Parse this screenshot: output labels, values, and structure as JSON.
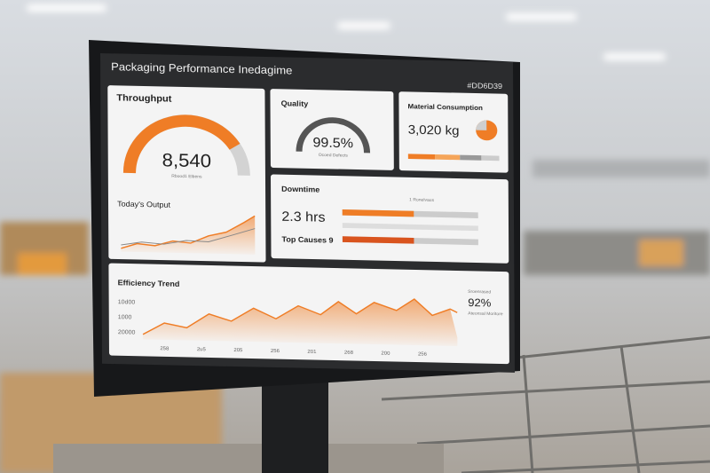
{
  "header": {
    "title": "Packaging Performance Inedagime",
    "tag": "#DD6D39"
  },
  "throughput": {
    "title": "Throughput",
    "value": "8,540",
    "caption": "Rbood1 Elbens",
    "output_title": "Today's Output"
  },
  "quality": {
    "title": "Quality",
    "value": "99.5%",
    "caption": "Ocoed Defects"
  },
  "material": {
    "title": "Material Consumption",
    "value": "3,020 kg"
  },
  "downtime": {
    "title": "Downtime",
    "value": "2.3 hrs",
    "caption": "1 Ronelvaus",
    "causes": "Top Causes 9"
  },
  "efficiency": {
    "title": "Efficiency Trend",
    "y_labels": [
      "10d00",
      "1000",
      "20000"
    ],
    "x_labels": [
      "258",
      "2u5",
      "205",
      "256",
      "201",
      "268",
      "200",
      "256"
    ],
    "kpi_caption": "Sroenrased",
    "kpi": "92%",
    "kpi_note": "Ateonsal Moritore"
  }
}
